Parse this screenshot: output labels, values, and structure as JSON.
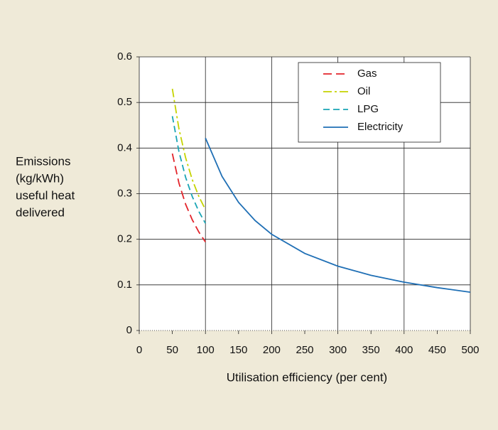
{
  "chart_data": {
    "type": "line",
    "xlabel": "Utilisation efficiency (per cent)",
    "ylabel": [
      "Emissions",
      "(kg/kWh)",
      "useful heat",
      "delivered"
    ],
    "xlim": [
      0,
      500
    ],
    "xticks": [
      0,
      50,
      100,
      150,
      200,
      250,
      300,
      350,
      400,
      450,
      500
    ],
    "xgrid": [
      100,
      200,
      300,
      400,
      500
    ],
    "ylim": [
      0,
      0.6
    ],
    "yticks": [
      0,
      0.1,
      0.2,
      0.3,
      0.4,
      0.5,
      0.6
    ],
    "grid": true,
    "legend": "upper right",
    "series": [
      {
        "name": "Gas",
        "color": "#e3242b",
        "dash": "12 6",
        "x": [
          50,
          60,
          70,
          80,
          90,
          100
        ],
        "values": [
          0.388,
          0.323,
          0.277,
          0.243,
          0.216,
          0.194
        ]
      },
      {
        "name": "Oil",
        "color": "#c5d300",
        "dash": "12 4 3 4",
        "x": [
          50,
          60,
          70,
          80,
          90,
          100
        ],
        "values": [
          0.53,
          0.442,
          0.379,
          0.331,
          0.294,
          0.265
        ]
      },
      {
        "name": "LPG",
        "color": "#1aa5b5",
        "dash": "9 5",
        "x": [
          50,
          60,
          70,
          80,
          90,
          100
        ],
        "values": [
          0.47,
          0.392,
          0.336,
          0.294,
          0.261,
          0.235
        ]
      },
      {
        "name": "Electricity",
        "color": "#1f6fb5",
        "dash": "none",
        "x": [
          100,
          125,
          150,
          175,
          200,
          250,
          300,
          350,
          400,
          450,
          500
        ],
        "values": [
          0.422,
          0.338,
          0.281,
          0.241,
          0.211,
          0.169,
          0.141,
          0.121,
          0.106,
          0.094,
          0.084
        ]
      }
    ]
  }
}
